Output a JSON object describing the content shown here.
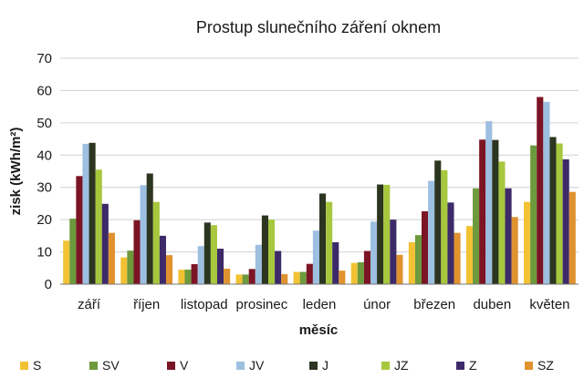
{
  "chart_data": {
    "type": "bar",
    "title": "Prostup slunečního záření oknem",
    "xlabel": "měsíc",
    "ylabel": "zisk (kWh/m²)",
    "ylim": [
      0,
      70
    ],
    "yticks": [
      0,
      10,
      20,
      30,
      40,
      50,
      60,
      70
    ],
    "grid": true,
    "legend_position": "bottom",
    "categories": [
      "září",
      "říjen",
      "listopad",
      "prosinec",
      "leden",
      "únor",
      "březen",
      "duben",
      "květen"
    ],
    "series": [
      {
        "name": "S",
        "color": "#f2c234",
        "values": [
          13.5,
          8.3,
          4.5,
          3.0,
          3.8,
          6.6,
          13.0,
          18.0,
          25.5
        ]
      },
      {
        "name": "SV",
        "color": "#6c9a3c",
        "values": [
          20.3,
          10.4,
          4.5,
          3.0,
          3.8,
          6.8,
          15.2,
          29.7,
          43.0
        ]
      },
      {
        "name": "V",
        "color": "#7b1425",
        "values": [
          33.5,
          19.8,
          6.2,
          4.7,
          6.3,
          10.3,
          22.6,
          44.8,
          58.0
        ]
      },
      {
        "name": "JV",
        "color": "#9dbfe0",
        "values": [
          43.5,
          30.7,
          11.8,
          12.2,
          16.6,
          19.4,
          32.0,
          50.5,
          56.5
        ]
      },
      {
        "name": "J",
        "color": "#2b3520",
        "values": [
          43.8,
          34.3,
          19.1,
          21.3,
          28.1,
          30.9,
          38.3,
          44.7,
          45.6
        ]
      },
      {
        "name": "JZ",
        "color": "#a7c73d",
        "values": [
          35.5,
          25.5,
          18.3,
          20.0,
          25.5,
          30.8,
          35.3,
          38.0,
          43.6
        ]
      },
      {
        "name": "Z",
        "color": "#3d2a68",
        "values": [
          24.9,
          15.0,
          11.0,
          10.3,
          13.0,
          20.0,
          25.3,
          29.7,
          38.7
        ]
      },
      {
        "name": "SZ",
        "color": "#e0922f",
        "values": [
          15.9,
          9.0,
          4.8,
          3.1,
          4.2,
          9.1,
          15.9,
          20.8,
          28.6
        ]
      }
    ]
  }
}
